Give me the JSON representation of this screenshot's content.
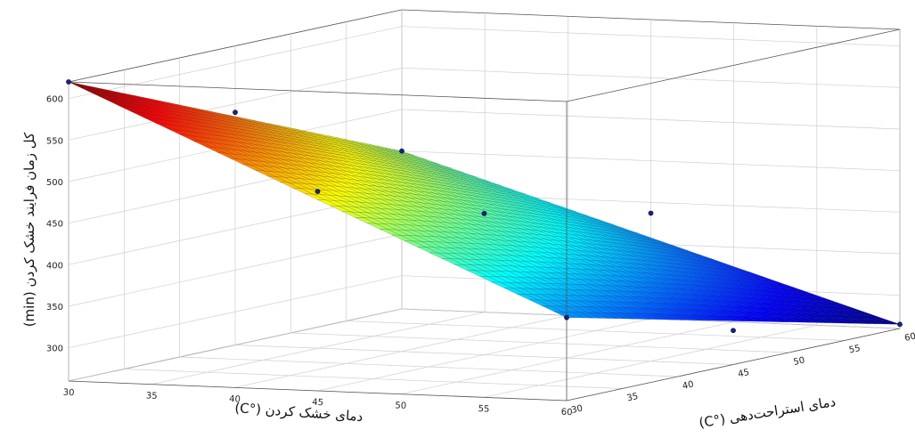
{
  "chart_data": {
    "type": "surface",
    "xlabel": "دمای خشک کردن (°C)",
    "ylabel": "دمای استراحت‌دهی (°C)",
    "zlabel": "کل زمان فرایند خشک کردن (min)",
    "x_ticks": [
      "30",
      "35",
      "40",
      "45",
      "50",
      "55",
      "60"
    ],
    "y_ticks": [
      "30",
      "35",
      "40",
      "45",
      "50",
      "55",
      "60"
    ],
    "z_ticks": [
      "300",
      "350",
      "400",
      "450",
      "500",
      "550",
      "600"
    ],
    "xlim": [
      30,
      60
    ],
    "ylim": [
      30,
      60
    ],
    "zlim": [
      260,
      620
    ],
    "colormap": "jet",
    "grid": true,
    "corners": [
      {
        "x": 30,
        "y": 30,
        "z": 620
      },
      {
        "x": 60,
        "y": 30,
        "z": 360
      },
      {
        "x": 30,
        "y": 60,
        "z": 450
      },
      {
        "x": 60,
        "y": 60,
        "z": 265
      }
    ],
    "center": {
      "x": 45,
      "y": 45,
      "z": 430
    },
    "design_points": [
      {
        "x": 30,
        "y": 30,
        "z": 620
      },
      {
        "x": 30,
        "y": 45,
        "z": 540
      },
      {
        "x": 30,
        "y": 60,
        "z": 450
      },
      {
        "x": 45,
        "y": 30,
        "z": 500
      },
      {
        "x": 45,
        "y": 45,
        "z": 430
      },
      {
        "x": 45,
        "y": 60,
        "z": 387
      },
      {
        "x": 60,
        "y": 30,
        "z": 360
      },
      {
        "x": 60,
        "y": 45,
        "z": 301
      },
      {
        "x": 60,
        "y": 60,
        "z": 265
      }
    ]
  }
}
